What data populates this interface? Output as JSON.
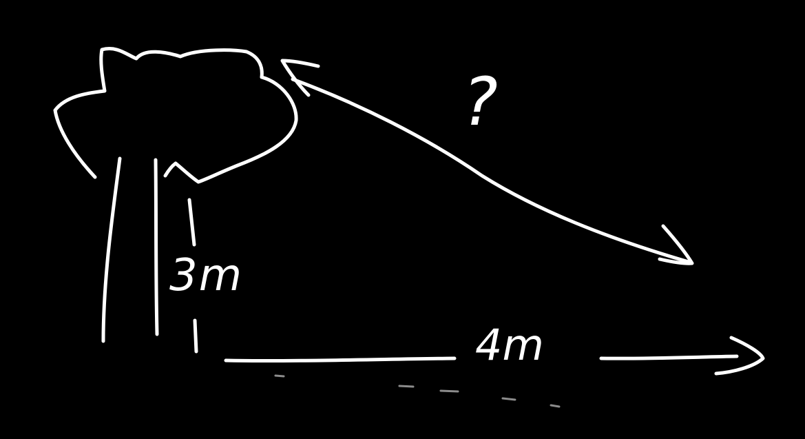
{
  "labels": {
    "height": "3m",
    "width": "4m",
    "unknown": "?"
  },
  "colors": {
    "background": "#000000",
    "ink": "#ffffff"
  }
}
